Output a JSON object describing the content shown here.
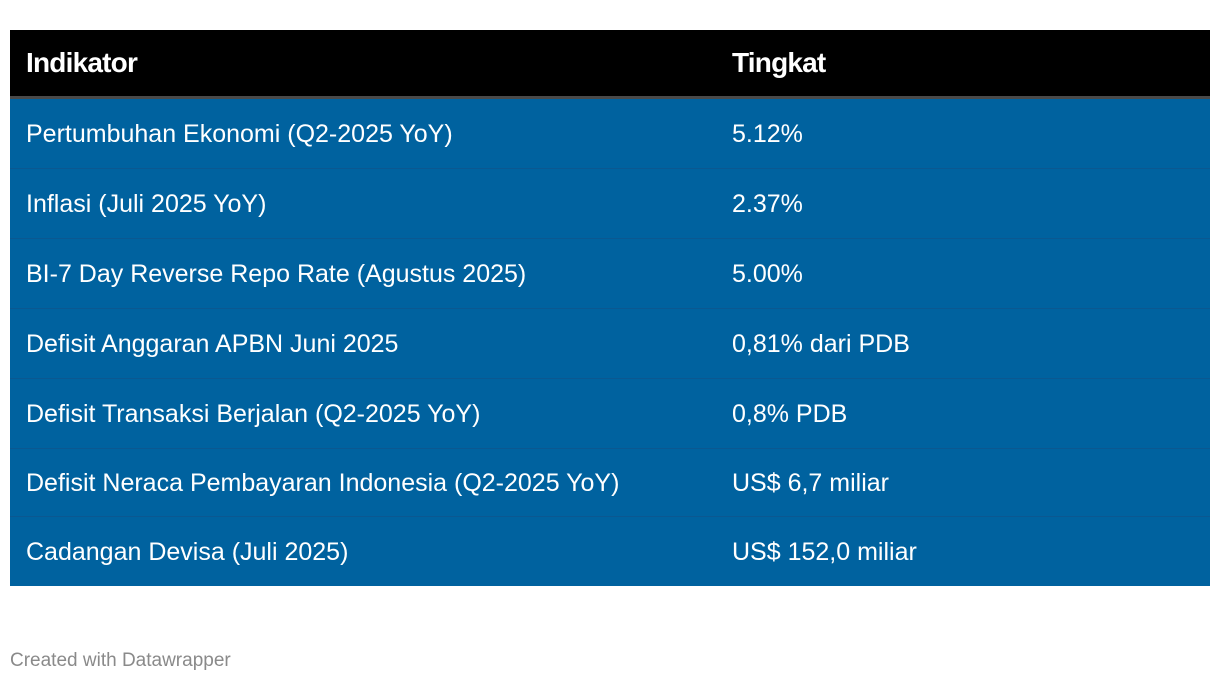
{
  "chart_data": {
    "type": "table",
    "columns": [
      "Indikator",
      "Tingkat"
    ],
    "rows": [
      [
        "Pertumbuhan Ekonomi (Q2-2025 YoY)",
        "5.12%"
      ],
      [
        "Inflasi (Juli 2025 YoY)",
        "2.37%"
      ],
      [
        "BI-7 Day Reverse Repo Rate (Agustus 2025)",
        "5.00%"
      ],
      [
        "Defisit Anggaran APBN Juni 2025",
        "0,81% dari PDB"
      ],
      [
        "Defisit Transaksi Berjalan (Q2-2025 YoY)",
        "0,8% PDB"
      ],
      [
        "Defisit Neraca Pembayaran Indonesia (Q2-2025 YoY)",
        "US$ 6,7 miliar"
      ],
      [
        "Cadangan Devisa (Juli 2025)",
        "US$ 152,0 miliar"
      ]
    ]
  },
  "footer": {
    "credit": "Created with Datawrapper"
  },
  "colors": {
    "header_bg": "#000000",
    "row_bg": "#00629f",
    "text": "#ffffff",
    "credit": "#8a8a8a"
  }
}
